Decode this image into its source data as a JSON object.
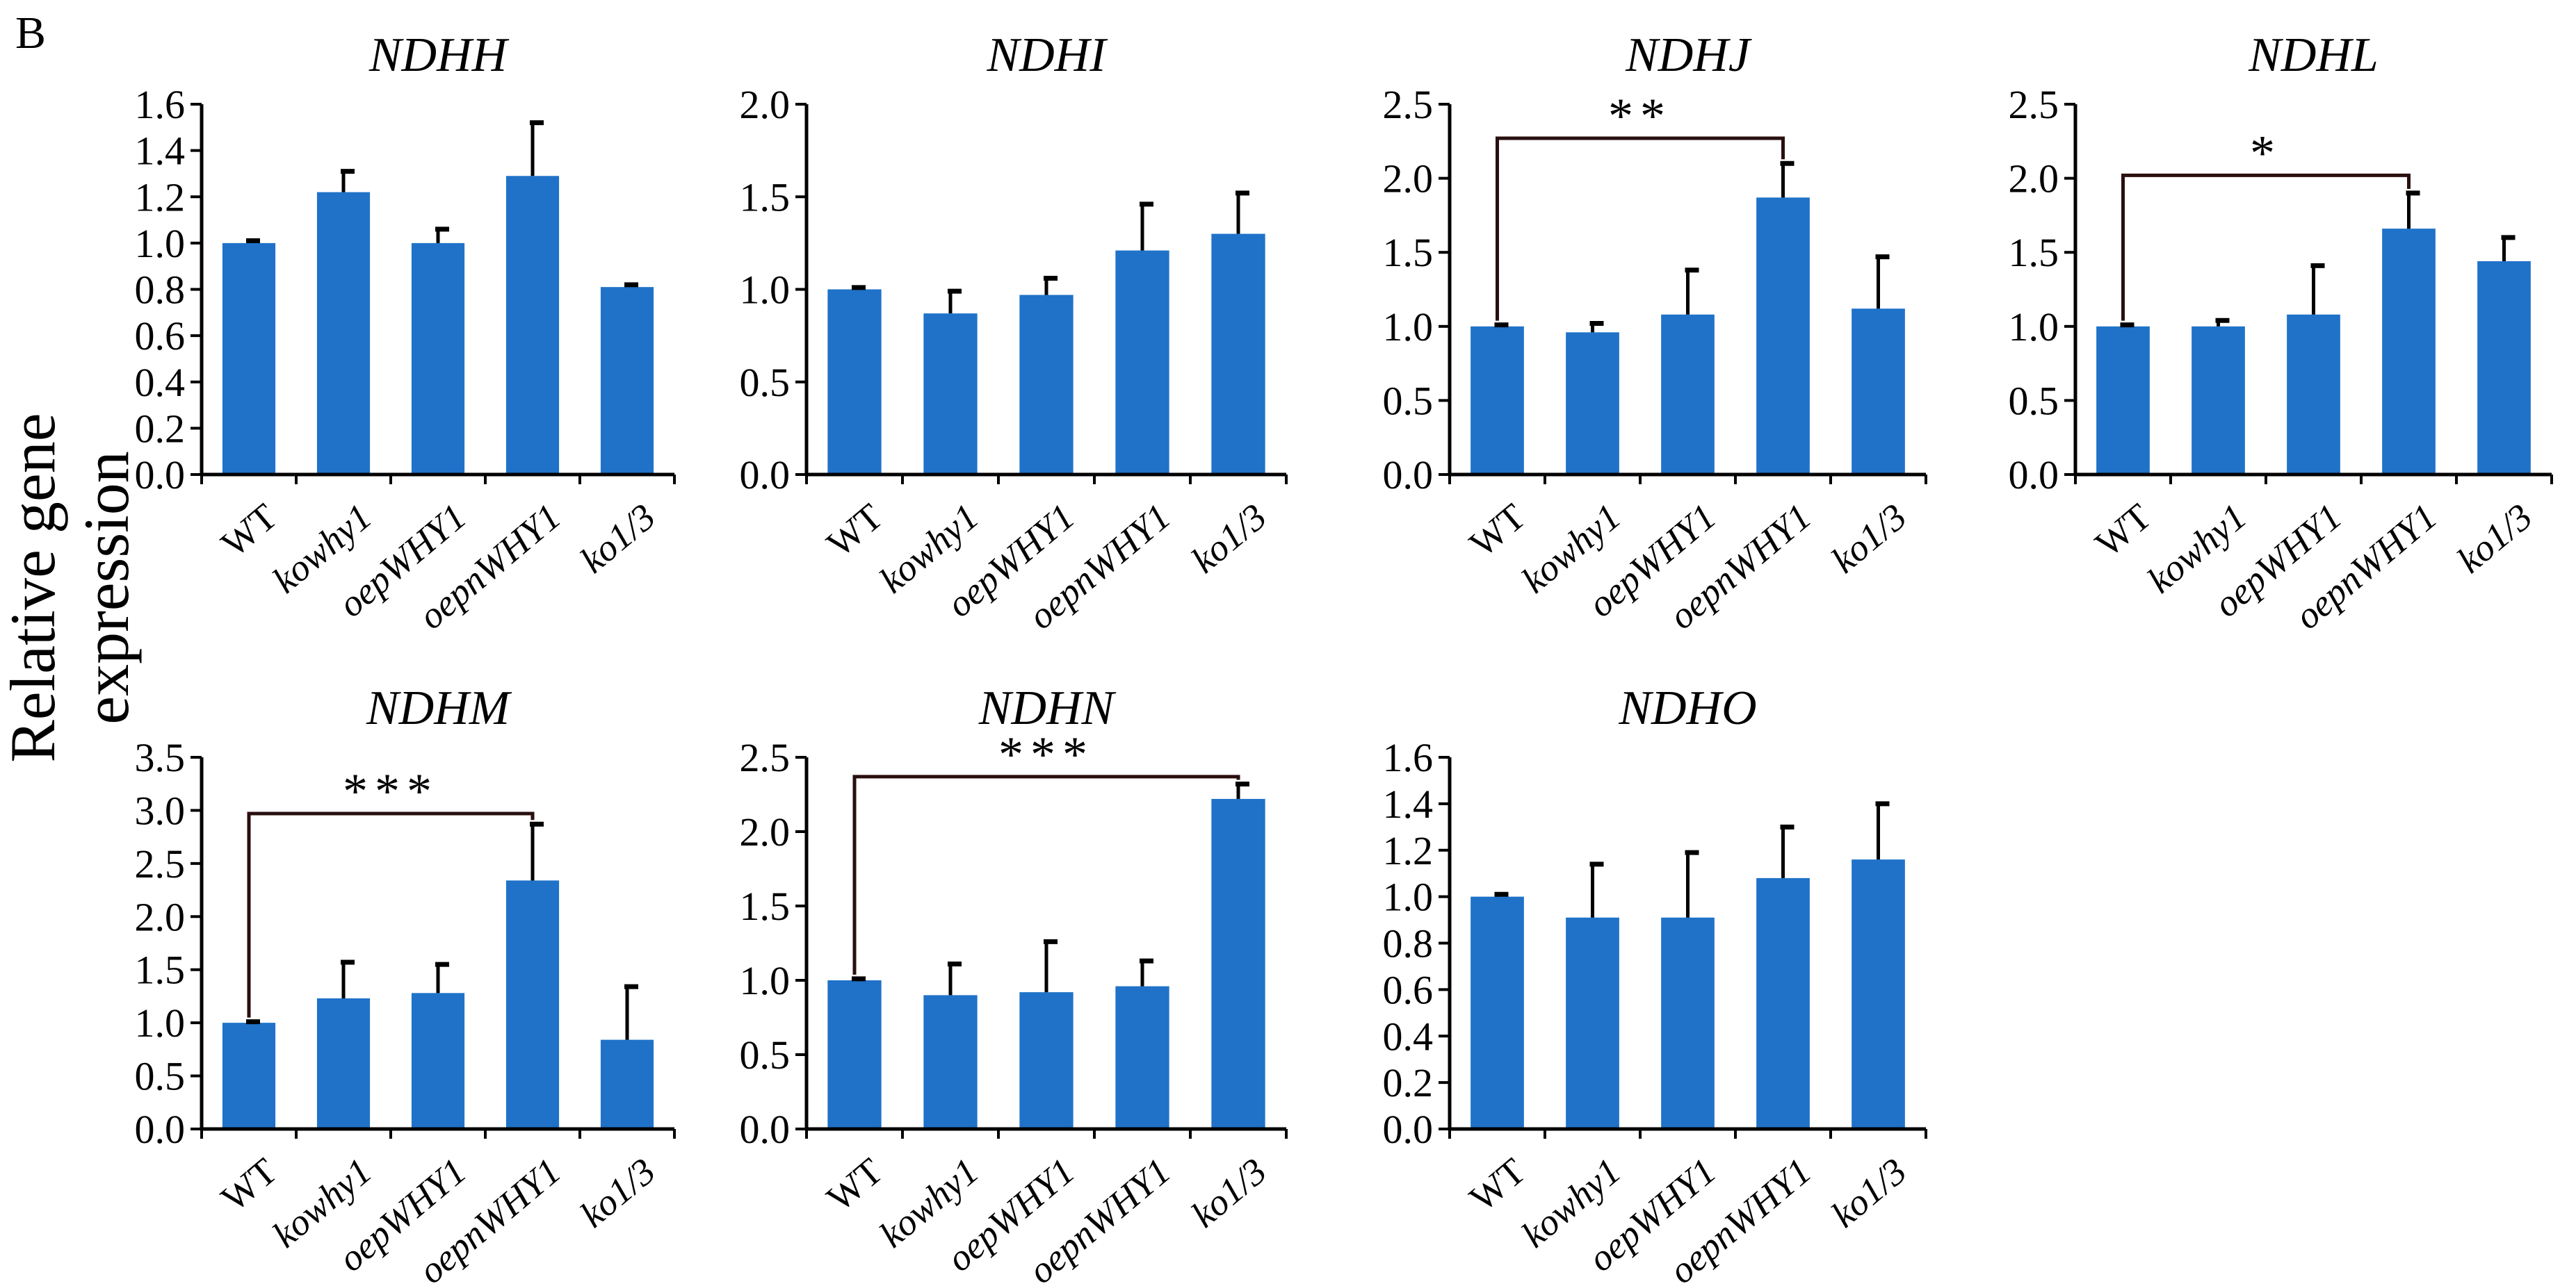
{
  "panel_letter": "B",
  "y_axis_label": "Relative gene expression",
  "colors": {
    "bar": "#1f72c8",
    "axis": "#000000",
    "sig": "#2a0f0f"
  },
  "chart_data": [
    {
      "type": "bar",
      "title": "NDHH",
      "categories": [
        "WT",
        "kowhy1",
        "oepWHY1",
        "oepnWHY1",
        "ko1/3"
      ],
      "values": [
        1.0,
        1.22,
        1.0,
        1.29,
        0.81
      ],
      "errors": [
        0.01,
        0.09,
        0.06,
        0.23,
        0.01
      ],
      "ylim": [
        0,
        1.6
      ],
      "yticks": [
        "0.0",
        "0.2",
        "0.4",
        "0.6",
        "0.8",
        "1.0",
        "1.2",
        "1.4",
        "1.6"
      ],
      "significance": null
    },
    {
      "type": "bar",
      "title": "NDHI",
      "categories": [
        "WT",
        "kowhy1",
        "oepWHY1",
        "oepnWHY1",
        "ko1/3"
      ],
      "values": [
        1.0,
        0.87,
        0.97,
        1.21,
        1.3
      ],
      "errors": [
        0.01,
        0.12,
        0.09,
        0.25,
        0.22
      ],
      "ylim": [
        0,
        2.0
      ],
      "yticks": [
        "0.0",
        "0.5",
        "1.0",
        "1.5",
        "2.0"
      ],
      "significance": null
    },
    {
      "type": "bar",
      "title": "NDHJ",
      "categories": [
        "WT",
        "kowhy1",
        "oepWHY1",
        "oepnWHY1",
        "ko1/3"
      ],
      "values": [
        1.0,
        0.96,
        1.08,
        1.87,
        1.12
      ],
      "errors": [
        0.01,
        0.06,
        0.3,
        0.23,
        0.35
      ],
      "ylim": [
        0,
        2.5
      ],
      "yticks": [
        "0.0",
        "0.5",
        "1.0",
        "1.5",
        "2.0",
        "2.5"
      ],
      "significance": {
        "from": 0,
        "to": 3,
        "label": "**",
        "level": 2.27
      }
    },
    {
      "type": "bar",
      "title": "NDHL",
      "categories": [
        "WT",
        "kowhy1",
        "oepWHY1",
        "oepnWHY1",
        "ko1/3"
      ],
      "values": [
        1.0,
        1.0,
        1.08,
        1.66,
        1.44
      ],
      "errors": [
        0.01,
        0.04,
        0.33,
        0.24,
        0.16
      ],
      "ylim": [
        0,
        2.5
      ],
      "yticks": [
        "0.0",
        "0.5",
        "1.0",
        "1.5",
        "2.0",
        "2.5"
      ],
      "significance": {
        "from": 0,
        "to": 3,
        "label": "*",
        "level": 2.02
      }
    },
    {
      "type": "bar",
      "title": "NDHM",
      "categories": [
        "WT",
        "kowhy1",
        "oepWHY1",
        "oepnWHY1",
        "ko1/3"
      ],
      "values": [
        1.0,
        1.23,
        1.28,
        2.34,
        0.84
      ],
      "errors": [
        0.01,
        0.34,
        0.27,
        0.53,
        0.5
      ],
      "ylim": [
        0,
        3.5
      ],
      "yticks": [
        "0.0",
        "0.5",
        "1.0",
        "1.5",
        "2.0",
        "2.5",
        "3.0",
        "3.5"
      ],
      "significance": {
        "from": 0,
        "to": 3,
        "label": "***",
        "level": 2.97
      }
    },
    {
      "type": "bar",
      "title": "NDHN",
      "categories": [
        "WT",
        "kowhy1",
        "oepWHY1",
        "oepnWHY1",
        "ko1/3"
      ],
      "values": [
        1.0,
        0.9,
        0.92,
        0.96,
        2.22
      ],
      "errors": [
        0.01,
        0.21,
        0.34,
        0.17,
        0.1
      ],
      "ylim": [
        0,
        2.5
      ],
      "yticks": [
        "0.0",
        "0.5",
        "1.0",
        "1.5",
        "2.0",
        "2.5"
      ],
      "significance": {
        "from": 0,
        "to": 4,
        "label": "***",
        "level": 2.37
      }
    },
    {
      "type": "bar",
      "title": "NDHO",
      "categories": [
        "WT",
        "kowhy1",
        "oepWHY1",
        "oepnWHY1",
        "ko1/3"
      ],
      "values": [
        1.0,
        0.91,
        0.91,
        1.08,
        1.16
      ],
      "errors": [
        0.01,
        0.23,
        0.28,
        0.22,
        0.24
      ],
      "ylim": [
        0,
        1.6
      ],
      "yticks": [
        "0.0",
        "0.2",
        "0.4",
        "0.6",
        "0.8",
        "1.0",
        "1.2",
        "1.4",
        "1.6"
      ],
      "significance": null
    }
  ]
}
